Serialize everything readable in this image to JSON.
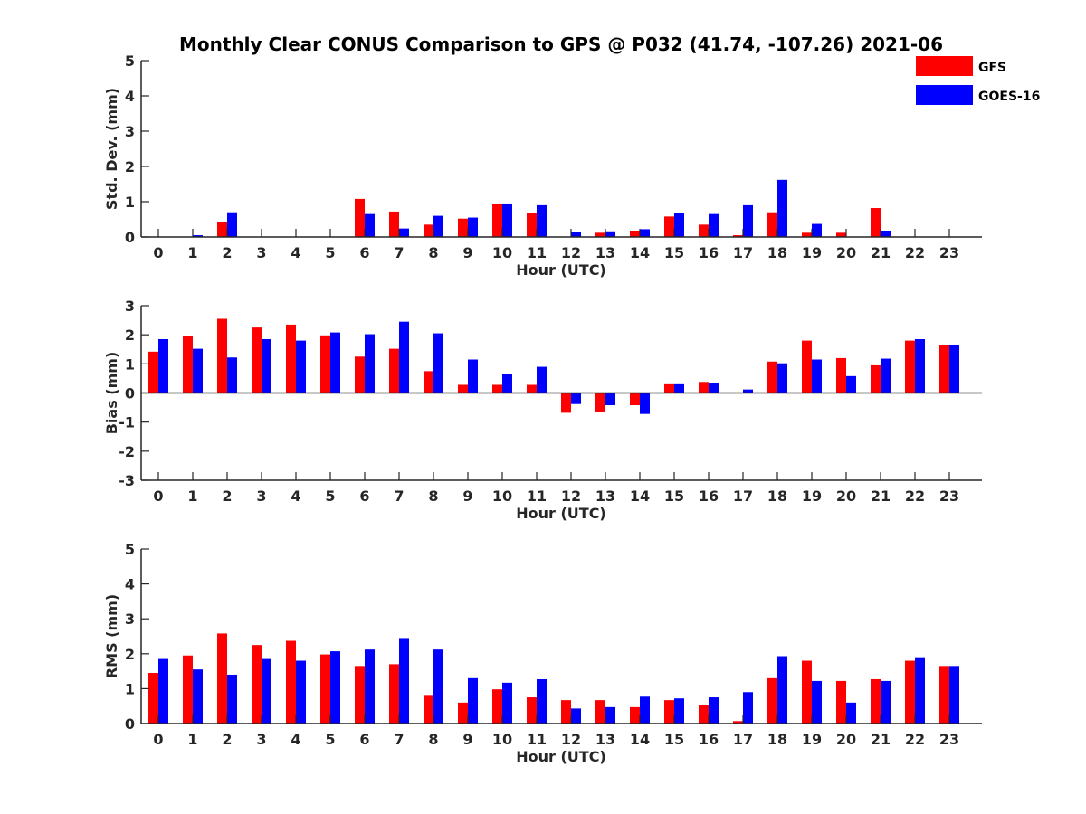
{
  "title": "Monthly Clear CONUS Comparison to GPS @ P032 (41.74, -107.26) 2021-06",
  "legend": {
    "placement": "top-right",
    "items": [
      {
        "label": "GFS",
        "color": "#ff0000"
      },
      {
        "label": "GOES-16",
        "color": "#0000ff"
      }
    ]
  },
  "chart_data": [
    {
      "type": "bar",
      "xlabel": "Hour (UTC)",
      "ylabel": "Std. Dev. (mm)",
      "ylim": [
        0,
        5
      ],
      "yticks": [
        0,
        1,
        2,
        3,
        4,
        5
      ],
      "grid": false,
      "categories": [
        "0",
        "1",
        "2",
        "3",
        "4",
        "5",
        "6",
        "7",
        "8",
        "9",
        "10",
        "11",
        "12",
        "13",
        "14",
        "15",
        "16",
        "17",
        "18",
        "19",
        "20",
        "21",
        "22",
        "23"
      ],
      "series": [
        {
          "name": "GFS",
          "color": "#ff0000",
          "values": [
            0,
            0,
            0.42,
            0,
            0,
            0,
            1.08,
            0.72,
            0.35,
            0.52,
            0.95,
            0.68,
            0,
            0.12,
            0.18,
            0.58,
            0.35,
            0.05,
            0.7,
            0.12,
            0.12,
            0.82,
            0,
            0
          ]
        },
        {
          "name": "GOES-16",
          "color": "#0000ff",
          "values": [
            0,
            0.05,
            0.7,
            0,
            0,
            0,
            0.65,
            0.24,
            0.6,
            0.55,
            0.95,
            0.9,
            0.14,
            0.16,
            0.22,
            0.68,
            0.65,
            0.9,
            1.62,
            0.37,
            0,
            0.18,
            0,
            0
          ]
        }
      ]
    },
    {
      "type": "bar",
      "xlabel": "Hour (UTC)",
      "ylabel": "Bias (mm)",
      "ylim": [
        -3,
        3
      ],
      "yticks": [
        -3,
        -2,
        -1,
        0,
        1,
        2,
        3
      ],
      "grid": false,
      "zero_line": true,
      "categories": [
        "0",
        "1",
        "2",
        "3",
        "4",
        "5",
        "6",
        "7",
        "8",
        "9",
        "10",
        "11",
        "12",
        "13",
        "14",
        "15",
        "16",
        "17",
        "18",
        "19",
        "20",
        "21",
        "22",
        "23"
      ],
      "series": [
        {
          "name": "GFS",
          "color": "#ff0000",
          "values": [
            1.42,
            1.95,
            2.55,
            2.25,
            2.35,
            1.98,
            1.25,
            1.52,
            0.75,
            0.28,
            0.28,
            0.28,
            -0.68,
            -0.65,
            -0.42,
            0.3,
            0.38,
            0,
            1.08,
            1.8,
            1.2,
            0.95,
            1.8,
            1.65
          ]
        },
        {
          "name": "GOES-16",
          "color": "#0000ff",
          "values": [
            1.85,
            1.52,
            1.22,
            1.85,
            1.8,
            2.08,
            2.02,
            2.45,
            2.05,
            1.15,
            0.65,
            0.9,
            -0.38,
            -0.42,
            -0.72,
            0.3,
            0.35,
            0.12,
            1.02,
            1.15,
            0.58,
            1.18,
            1.85,
            1.65
          ]
        }
      ]
    },
    {
      "type": "bar",
      "xlabel": "Hour (UTC)",
      "ylabel": "RMS (mm)",
      "ylim": [
        0,
        5
      ],
      "yticks": [
        0,
        1,
        2,
        3,
        4,
        5
      ],
      "grid": false,
      "categories": [
        "0",
        "1",
        "2",
        "3",
        "4",
        "5",
        "6",
        "7",
        "8",
        "9",
        "10",
        "11",
        "12",
        "13",
        "14",
        "15",
        "16",
        "17",
        "18",
        "19",
        "20",
        "21",
        "22",
        "23"
      ],
      "series": [
        {
          "name": "GFS",
          "color": "#ff0000",
          "values": [
            1.45,
            1.95,
            2.58,
            2.25,
            2.37,
            1.98,
            1.65,
            1.7,
            0.82,
            0.6,
            0.98,
            0.75,
            0.67,
            0.67,
            0.47,
            0.67,
            0.52,
            0.07,
            1.3,
            1.8,
            1.22,
            1.27,
            1.8,
            1.65
          ]
        },
        {
          "name": "GOES-16",
          "color": "#0000ff",
          "values": [
            1.85,
            1.55,
            1.4,
            1.85,
            1.8,
            2.07,
            2.12,
            2.45,
            2.12,
            1.3,
            1.17,
            1.27,
            0.43,
            0.47,
            0.77,
            0.72,
            0.75,
            0.9,
            1.93,
            1.22,
            0.6,
            1.22,
            1.9,
            1.65
          ]
        }
      ]
    }
  ]
}
